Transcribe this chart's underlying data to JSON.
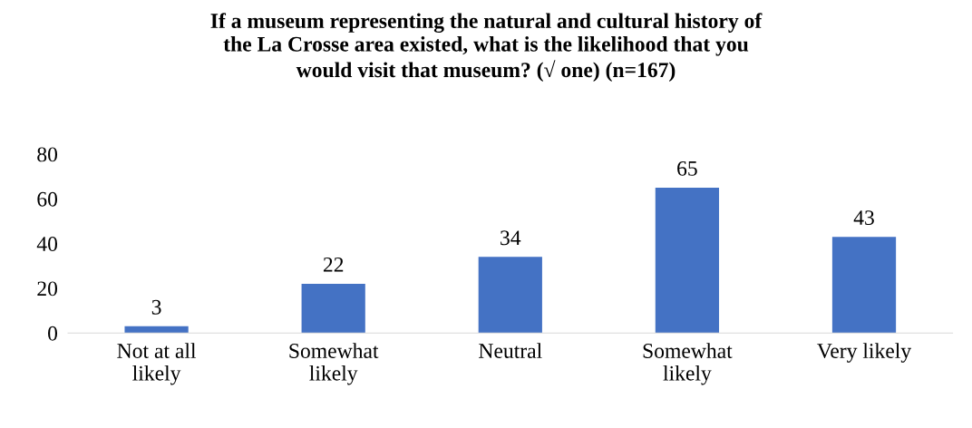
{
  "chart_data": {
    "type": "bar",
    "title": "If a museum representing the natural and cultural history of\nthe La Crosse area existed, what is the likelihood that you\nwould visit that museum? (√ one) (n=167)",
    "categories": [
      "Not at all\nlikely",
      "Somewhat\nlikely",
      "Neutral",
      "Somewhat\nlikely",
      "Very likely"
    ],
    "values": [
      3,
      22,
      34,
      65,
      43
    ],
    "color": "#4472c4",
    "ylim": [
      0,
      80
    ],
    "yticks": [
      0,
      20,
      40,
      60,
      80
    ],
    "grid": false,
    "data_labels": true
  }
}
